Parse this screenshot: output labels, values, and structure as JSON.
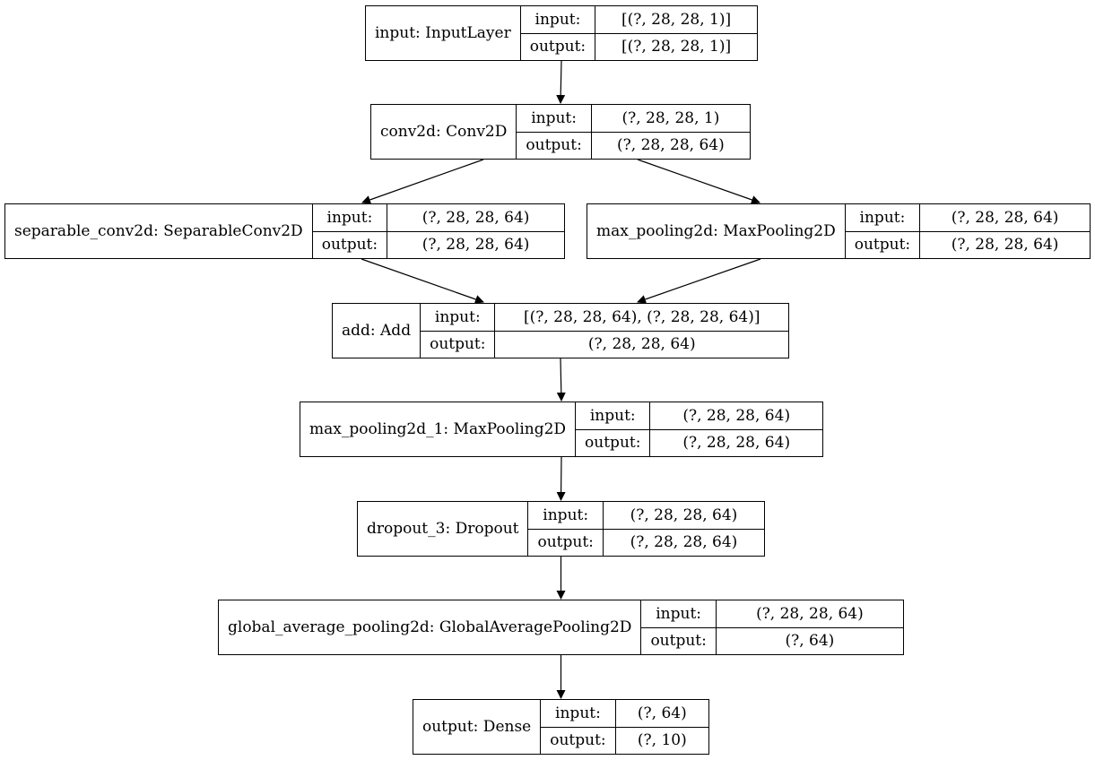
{
  "nodes": [
    {
      "id": "n0",
      "name": "input: InputLayer",
      "input_label": "input:",
      "output_label": "output:",
      "input_value": "[(?, 28, 28, 1)]",
      "output_value": "[(?, 28, 28, 1)]"
    },
    {
      "id": "n1",
      "name": "conv2d: Conv2D",
      "input_label": "input:",
      "output_label": "output:",
      "input_value": "(?, 28, 28, 1)",
      "output_value": "(?, 28, 28, 64)"
    },
    {
      "id": "n2",
      "name": "separable_conv2d: SeparableConv2D",
      "input_label": "input:",
      "output_label": "output:",
      "input_value": "(?, 28, 28, 64)",
      "output_value": "(?, 28, 28, 64)"
    },
    {
      "id": "n3",
      "name": "max_pooling2d: MaxPooling2D",
      "input_label": "input:",
      "output_label": "output:",
      "input_value": "(?, 28, 28, 64)",
      "output_value": "(?, 28, 28, 64)"
    },
    {
      "id": "n4",
      "name": "add: Add",
      "input_label": "input:",
      "output_label": "output:",
      "input_value": "[(?, 28, 28, 64), (?, 28, 28, 64)]",
      "output_value": "(?, 28, 28, 64)"
    },
    {
      "id": "n5",
      "name": "max_pooling2d_1: MaxPooling2D",
      "input_label": "input:",
      "output_label": "output:",
      "input_value": "(?, 28, 28, 64)",
      "output_value": "(?, 28, 28, 64)"
    },
    {
      "id": "n6",
      "name": "dropout_3: Dropout",
      "input_label": "input:",
      "output_label": "output:",
      "input_value": "(?, 28, 28, 64)",
      "output_value": "(?, 28, 28, 64)"
    },
    {
      "id": "n7",
      "name": "global_average_pooling2d: GlobalAveragePooling2D",
      "input_label": "input:",
      "output_label": "output:",
      "input_value": "(?, 28, 28, 64)",
      "output_value": "(?, 64)"
    },
    {
      "id": "n8",
      "name": "output: Dense",
      "input_label": "input:",
      "output_label": "output:",
      "input_value": "(?, 64)",
      "output_value": "(?, 10)"
    }
  ],
  "edges": [
    {
      "from": "n0",
      "to": "n1"
    },
    {
      "from": "n1",
      "to": "n2"
    },
    {
      "from": "n1",
      "to": "n3"
    },
    {
      "from": "n2",
      "to": "n4"
    },
    {
      "from": "n3",
      "to": "n4"
    },
    {
      "from": "n4",
      "to": "n5"
    },
    {
      "from": "n5",
      "to": "n6"
    },
    {
      "from": "n6",
      "to": "n7"
    },
    {
      "from": "n7",
      "to": "n8"
    }
  ]
}
